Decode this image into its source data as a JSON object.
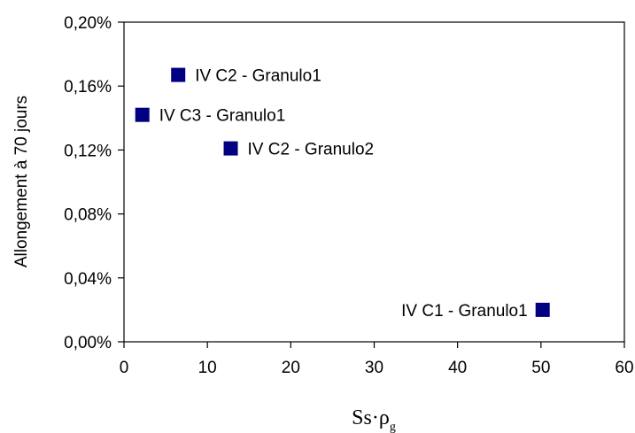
{
  "chart_data": {
    "type": "scatter",
    "title": "",
    "xlabel": "Ss·ρ",
    "xlabel_subscript": "g",
    "ylabel": "Allongement à 70 jours",
    "xlim": [
      0,
      60
    ],
    "ylim": [
      0,
      0.2
    ],
    "x_ticks": [
      0,
      10,
      20,
      30,
      40,
      50,
      60
    ],
    "x_tick_labels": [
      "0",
      "10",
      "20",
      "30",
      "40",
      "50",
      "60"
    ],
    "y_ticks": [
      0,
      0.04,
      0.08,
      0.12,
      0.16,
      0.2
    ],
    "y_tick_labels": [
      "0,00%",
      "0,04%",
      "0,08%",
      "0,12%",
      "0,16%",
      "0,20%"
    ],
    "grid": false,
    "legend": "none",
    "marker_color": "#000080",
    "points": [
      {
        "label": "IV C2 - Granulo1",
        "x": 6.5,
        "y": 0.167,
        "label_side": "right"
      },
      {
        "label": "IV C3 - Granulo1",
        "x": 2.2,
        "y": 0.142,
        "label_side": "right"
      },
      {
        "label": "IV C2 - Granulo2",
        "x": 12.8,
        "y": 0.121,
        "label_side": "right"
      },
      {
        "label": "IV C1 - Granulo1",
        "x": 50.2,
        "y": 0.02,
        "label_side": "left"
      }
    ]
  }
}
